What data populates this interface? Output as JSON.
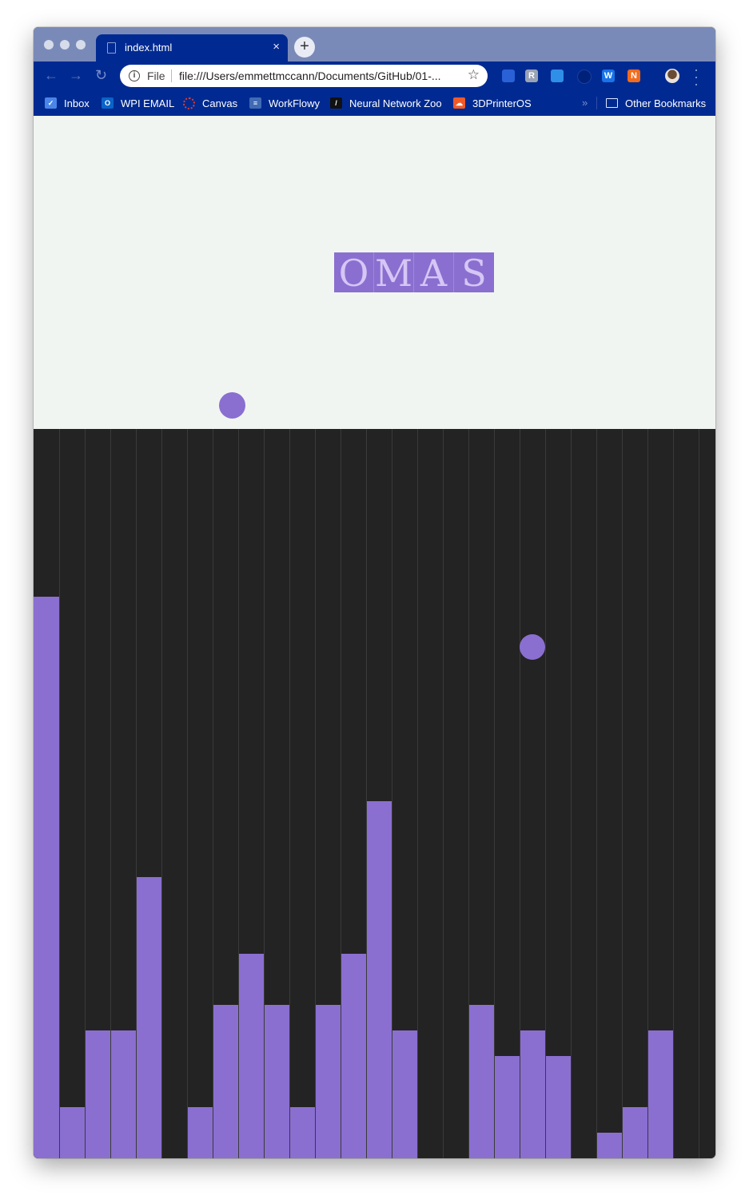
{
  "tab": {
    "title": "index.html",
    "close": "×",
    "new_tab": "+"
  },
  "nav": {
    "back": "←",
    "forward": "→",
    "reload": "↻"
  },
  "omnibox": {
    "info": "i",
    "scheme_label": "File",
    "url": "file:///Users/emmettmccann/Documents/GitHub/01-...",
    "star": "☆"
  },
  "extensions": [
    {
      "name": "pen-extension-icon",
      "glyph": "",
      "color": "#2a61d6"
    },
    {
      "name": "r-extension-icon",
      "glyph": "R",
      "color": "#9aa3b5"
    },
    {
      "name": "window-extension-icon",
      "glyph": "",
      "color": "#2f8fe8"
    },
    {
      "name": "circle-extension-icon",
      "glyph": "",
      "color": "#00217a"
    },
    {
      "name": "w-extension-icon",
      "glyph": "W",
      "color": "#1a73e8"
    },
    {
      "name": "n-extension-icon",
      "glyph": "N",
      "color": "#f26b1d"
    }
  ],
  "bookmarks": [
    {
      "label": "Inbox",
      "icon": "inbox-icon",
      "color": "#4a86e8",
      "glyph": "✓"
    },
    {
      "label": "WPI EMAIL",
      "icon": "outlook-icon",
      "color": "#0a64c8",
      "glyph": "O"
    },
    {
      "label": "Canvas",
      "icon": "canvas-icon",
      "color": "#e33b2e",
      "glyph": ""
    },
    {
      "label": "WorkFlowy",
      "icon": "workflowy-icon",
      "color": "#3f6bb4",
      "glyph": "≡"
    },
    {
      "label": "Neural Network Zoo",
      "icon": "nnzoo-icon",
      "color": "#111111",
      "glyph": "/"
    },
    {
      "label": "3DPrinterOS",
      "icon": "printer-icon",
      "color": "#f05a28",
      "glyph": "☁"
    }
  ],
  "bookmarks_more": "»",
  "other_bookmarks": "Other Bookmarks",
  "logo": {
    "letters": [
      "O",
      "M",
      "A",
      "S"
    ]
  },
  "colors": {
    "accent": "#8a6fd0",
    "dark": "#232323",
    "light": "#f1f5f2",
    "chrome": "#002a91"
  },
  "bars": {
    "levels": [
      0.77,
      0.07,
      0.175,
      0.175,
      0.385,
      0.0,
      0.07,
      0.21,
      0.28,
      0.21,
      0.07,
      0.21,
      0.28,
      0.49,
      0.175,
      0.0,
      0.0,
      0.21,
      0.14,
      0.175,
      0.14,
      0.0,
      0.035,
      0.07,
      0.175,
      0.0
    ]
  }
}
